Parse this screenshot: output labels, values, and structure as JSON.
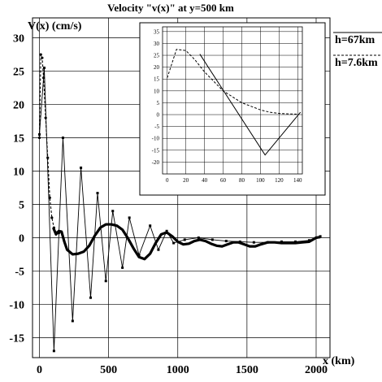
{
  "chart_data": {
    "type": "line",
    "title": "Velocity \"v(x)\" at y=500 km",
    "xlabel": "x (km)",
    "ylabel": "V(x) (cm/s)",
    "xlim": [
      -50,
      2100
    ],
    "ylim": [
      -18,
      33
    ],
    "xticks": [
      0,
      500,
      1000,
      1500,
      2000
    ],
    "yticks": [
      30,
      25,
      20,
      15,
      10,
      5,
      0,
      -5,
      -10,
      -15
    ],
    "grid": true,
    "legend_position": "top-right",
    "legend": [
      {
        "label": "h=67km",
        "style": "solid"
      },
      {
        "label": "h=7.6km",
        "style": "dashed"
      }
    ],
    "series": [
      {
        "name": "h=67km",
        "style": "solid thin with markers",
        "x": [
          0,
          35,
          105,
          170,
          240,
          300,
          370,
          420,
          480,
          530,
          600,
          650,
          720,
          800,
          860,
          920,
          970,
          1050,
          1150,
          1250,
          1350,
          1450,
          1550,
          1650,
          1750,
          1850,
          1950,
          2000,
          2030
        ],
        "y": [
          15.5,
          25.5,
          -17,
          15,
          -12.5,
          10.5,
          -9,
          6.7,
          -6.5,
          4,
          -4.5,
          3,
          -2.6,
          1.8,
          -1.8,
          1,
          -0.8,
          -0.3,
          0,
          -0.3,
          -0.5,
          -0.6,
          -0.7,
          -0.7,
          -0.6,
          -0.6,
          -0.4,
          0,
          0.2
        ]
      },
      {
        "name": "h=7.6km",
        "style": "dashed with dots",
        "x": [
          0,
          10,
          20,
          30,
          45,
          60,
          75,
          90,
          105,
          120,
          140
        ],
        "y": [
          15,
          27.5,
          27,
          24,
          18,
          12,
          6,
          3,
          1.5,
          0.8,
          0.7
        ]
      },
      {
        "name": "",
        "style": "thick solid",
        "x": [
          100,
          120,
          140,
          160,
          180,
          200,
          240,
          280,
          320,
          360,
          400,
          440,
          480,
          520,
          560,
          600,
          640,
          680,
          720,
          760,
          800,
          840,
          880,
          920,
          960,
          1000,
          1040,
          1080,
          1120,
          1160,
          1200,
          1240,
          1280,
          1320,
          1360,
          1400,
          1440,
          1480,
          1520,
          1560,
          1600,
          1650,
          1700,
          1750,
          1800,
          1850,
          1900,
          1950,
          2000,
          2030
        ],
        "y": [
          1.5,
          0.5,
          1.0,
          0.9,
          -0.6,
          -1.8,
          -2.5,
          -2.4,
          -2.1,
          -1.2,
          0.3,
          1.5,
          2.0,
          2.0,
          1.8,
          1.2,
          -0.1,
          -1.6,
          -2.9,
          -3.2,
          -2.4,
          -0.8,
          0.5,
          0.8,
          0.2,
          -0.6,
          -1.0,
          -0.9,
          -0.5,
          -0.3,
          -0.5,
          -0.9,
          -1.2,
          -1.3,
          -1.0,
          -0.7,
          -0.7,
          -1.0,
          -1.3,
          -1.3,
          -1.0,
          -0.7,
          -0.7,
          -0.8,
          -0.8,
          -0.8,
          -0.7,
          -0.6,
          0.0,
          0.1
        ]
      }
    ],
    "inset": {
      "type": "line",
      "xlim": [
        -5,
        145
      ],
      "ylim": [
        -25,
        37
      ],
      "xticks": [
        0,
        20,
        40,
        60,
        80,
        100,
        120,
        140
      ],
      "yticks": [
        35,
        30,
        25,
        20,
        15,
        10,
        5,
        0,
        -5,
        -10,
        -15,
        -20
      ],
      "grid": true,
      "series": [
        {
          "style": "solid",
          "x": [
            35,
            105,
            143
          ],
          "y": [
            25.5,
            -17,
            1
          ]
        },
        {
          "style": "dashed",
          "x": [
            0,
            10,
            20,
            30,
            40,
            50,
            60,
            70,
            80,
            90,
            100,
            110,
            120,
            130,
            140
          ],
          "y": [
            15.5,
            27.5,
            27,
            23,
            18,
            14,
            10,
            7.5,
            5,
            3.5,
            2,
            1,
            0.5,
            0.3,
            0.2
          ]
        }
      ]
    }
  }
}
